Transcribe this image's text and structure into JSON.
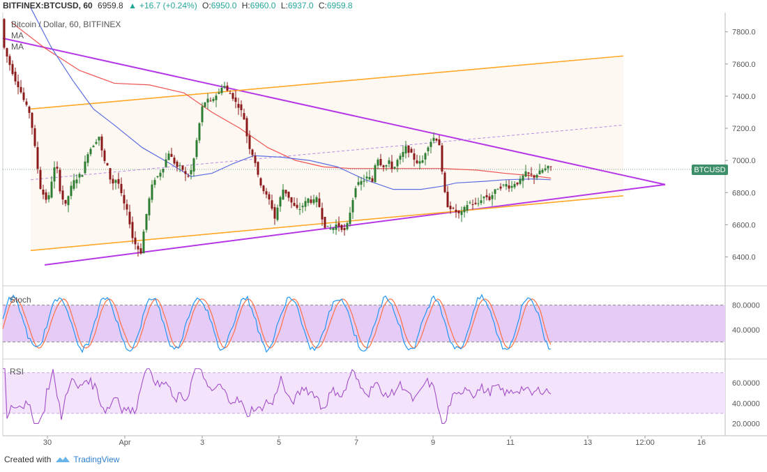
{
  "header": {
    "symbol": "BITFINEX:BTCUSD, 60",
    "last": "6959.8",
    "change": "+16.7 (+0.24%)",
    "open_label": "O:",
    "open": "6950.0",
    "high_label": "H:",
    "high": "6960.0",
    "low_label": "L:",
    "low": "6937.0",
    "close_label": "C:",
    "close": "6959.8"
  },
  "overlay": {
    "title": "Bitcoin / Dollar, 60, BITFINEX",
    "ma1": "MA",
    "ma2": "MA"
  },
  "price_tag": "BTCUSD",
  "footer": {
    "created_with": "Created with",
    "brand": "TradingView"
  },
  "colors": {
    "bull": "#2e7d32",
    "bear": "#8b1a1a",
    "purple_line": "#b537e6",
    "orange_line": "#ffa726",
    "ma_red": "#ef5350",
    "ma_blue": "#5b6ee1",
    "stoch_k": "#2196f3",
    "stoch_d": "#ff7043",
    "stoch_fill": "#e6cbf7",
    "rsi_fill": "#f3e3fb",
    "rsi_line": "#a24ec9",
    "tag_bg": "#3d8f6a"
  },
  "chart_data": [
    {
      "type": "candlestick",
      "title": "Bitcoin / Dollar, 60, BITFINEX",
      "y_ticks": [
        "7800.0",
        "7600.0",
        "7400.0",
        "7200.0",
        "7000.0",
        "6800.0",
        "6600.0",
        "6400.0"
      ],
      "x_ticks": [
        "30",
        "Apr",
        "3",
        "5",
        "7",
        "9",
        "11",
        "13",
        "12:00",
        "16"
      ],
      "ylim": [
        6220,
        7920
      ],
      "current_price": 6959.8,
      "price_path": [
        [
          0,
          7880
        ],
        [
          4,
          7700
        ],
        [
          10,
          7620
        ],
        [
          20,
          7500
        ],
        [
          26,
          7450
        ],
        [
          34,
          7350
        ],
        [
          40,
          7300
        ],
        [
          46,
          7160
        ],
        [
          50,
          7000
        ],
        [
          54,
          6900
        ],
        [
          58,
          6760
        ],
        [
          62,
          6820
        ],
        [
          66,
          6700
        ],
        [
          70,
          6850
        ],
        [
          74,
          6900
        ],
        [
          78,
          7000
        ],
        [
          84,
          6820
        ],
        [
          88,
          6760
        ],
        [
          92,
          6720
        ],
        [
          96,
          6780
        ],
        [
          102,
          6860
        ],
        [
          110,
          6900
        ],
        [
          116,
          6920
        ],
        [
          124,
          7050
        ],
        [
          132,
          7100
        ],
        [
          140,
          7150
        ],
        [
          146,
          7010
        ],
        [
          152,
          6960
        ],
        [
          158,
          6850
        ],
        [
          166,
          6890
        ],
        [
          174,
          6750
        ],
        [
          182,
          6660
        ],
        [
          188,
          6520
        ],
        [
          194,
          6460
        ],
        [
          200,
          6430
        ],
        [
          206,
          6620
        ],
        [
          212,
          6760
        ],
        [
          218,
          6880
        ],
        [
          224,
          6900
        ],
        [
          232,
          6960
        ],
        [
          240,
          7050
        ],
        [
          246,
          7000
        ],
        [
          252,
          6960
        ],
        [
          258,
          6960
        ],
        [
          264,
          6910
        ],
        [
          270,
          6900
        ],
        [
          276,
          7010
        ],
        [
          282,
          7180
        ],
        [
          288,
          7330
        ],
        [
          294,
          7380
        ],
        [
          300,
          7360
        ],
        [
          306,
          7400
        ],
        [
          312,
          7420
        ],
        [
          318,
          7480
        ],
        [
          324,
          7430
        ],
        [
          330,
          7410
        ],
        [
          336,
          7360
        ],
        [
          342,
          7330
        ],
        [
          348,
          7260
        ],
        [
          354,
          7100
        ],
        [
          360,
          7040
        ],
        [
          364,
          6990
        ],
        [
          368,
          6900
        ],
        [
          374,
          6830
        ],
        [
          380,
          6780
        ],
        [
          386,
          6740
        ],
        [
          392,
          6640
        ],
        [
          398,
          6740
        ],
        [
          404,
          6820
        ],
        [
          410,
          6790
        ],
        [
          418,
          6720
        ],
        [
          426,
          6690
        ],
        [
          432,
          6720
        ],
        [
          440,
          6760
        ],
        [
          446,
          6740
        ],
        [
          452,
          6760
        ],
        [
          458,
          6690
        ],
        [
          462,
          6600
        ],
        [
          468,
          6580
        ],
        [
          474,
          6570
        ],
        [
          480,
          6600
        ],
        [
          486,
          6590
        ],
        [
          492,
          6560
        ],
        [
          496,
          6600
        ],
        [
          502,
          6720
        ],
        [
          508,
          6840
        ],
        [
          514,
          6860
        ],
        [
          520,
          6880
        ],
        [
          526,
          6900
        ],
        [
          532,
          6870
        ],
        [
          538,
          7030
        ],
        [
          544,
          6980
        ],
        [
          550,
          6960
        ],
        [
          556,
          6990
        ],
        [
          562,
          6940
        ],
        [
          568,
          7000
        ],
        [
          574,
          7030
        ],
        [
          580,
          7080
        ],
        [
          586,
          7050
        ],
        [
          592,
          7010
        ],
        [
          598,
          6980
        ],
        [
          604,
          7000
        ],
        [
          610,
          7080
        ],
        [
          616,
          7120
        ],
        [
          622,
          7150
        ],
        [
          628,
          7100
        ],
        [
          634,
          6830
        ],
        [
          640,
          6720
        ],
        [
          646,
          6700
        ],
        [
          652,
          6680
        ],
        [
          658,
          6660
        ],
        [
          664,
          6700
        ],
        [
          670,
          6740
        ],
        [
          676,
          6730
        ],
        [
          682,
          6720
        ],
        [
          688,
          6760
        ],
        [
          694,
          6780
        ],
        [
          700,
          6760
        ],
        [
          706,
          6800
        ],
        [
          712,
          6830
        ],
        [
          718,
          6840
        ],
        [
          724,
          6850
        ],
        [
          730,
          6830
        ],
        [
          736,
          6860
        ],
        [
          742,
          6860
        ],
        [
          748,
          6900
        ],
        [
          752,
          6920
        ],
        [
          758,
          6910
        ],
        [
          764,
          6900
        ],
        [
          770,
          6920
        ],
        [
          776,
          6940
        ],
        [
          782,
          6950
        ],
        [
          786,
          6959.8
        ]
      ],
      "ma_red": [
        [
          12,
          7860
        ],
        [
          60,
          7700
        ],
        [
          110,
          7560
        ],
        [
          160,
          7480
        ],
        [
          210,
          7470
        ],
        [
          260,
          7420
        ],
        [
          300,
          7300
        ],
        [
          340,
          7200
        ],
        [
          380,
          7080
        ],
        [
          420,
          7000
        ],
        [
          460,
          6960
        ],
        [
          500,
          6950
        ],
        [
          540,
          6950
        ],
        [
          580,
          6950
        ],
        [
          630,
          6950
        ],
        [
          680,
          6940
        ],
        [
          720,
          6920
        ],
        [
          760,
          6905
        ],
        [
          786,
          6890
        ]
      ],
      "ma_blue": [
        [
          40,
          7950
        ],
        [
          70,
          7700
        ],
        [
          100,
          7500
        ],
        [
          130,
          7320
        ],
        [
          160,
          7220
        ],
        [
          200,
          7080
        ],
        [
          240,
          6980
        ],
        [
          270,
          6900
        ],
        [
          300,
          6920
        ],
        [
          330,
          6980
        ],
        [
          360,
          7030
        ],
        [
          400,
          7020
        ],
        [
          440,
          7000
        ],
        [
          480,
          6960
        ],
        [
          520,
          6880
        ],
        [
          560,
          6820
        ],
        [
          600,
          6820
        ],
        [
          630,
          6840
        ],
        [
          650,
          6860
        ],
        [
          690,
          6870
        ],
        [
          720,
          6880
        ],
        [
          760,
          6885
        ],
        [
          786,
          6880
        ]
      ],
      "trendlines": [
        {
          "name": "upper-triangle",
          "color": "purple",
          "from": [
            0,
            7760
          ],
          "to": [
            950,
            6850
          ]
        },
        {
          "name": "lower-triangle",
          "color": "purple",
          "from": [
            60,
            6350
          ],
          "to": [
            950,
            6850
          ]
        },
        {
          "name": "upper-channel",
          "color": "orange",
          "from": [
            40,
            7320
          ],
          "to": [
            890,
            7650
          ]
        },
        {
          "name": "lower-channel",
          "color": "orange",
          "from": [
            40,
            6440
          ],
          "to": [
            890,
            6780
          ]
        },
        {
          "name": "mid-channel",
          "color": "purple-dashed",
          "from": [
            40,
            6880
          ],
          "to": [
            890,
            7220
          ]
        }
      ]
    },
    {
      "type": "line",
      "title": "Stoch",
      "y_ticks": [
        "80.0000",
        "40.0000"
      ],
      "ylim": [
        0,
        100
      ],
      "bands": [
        80,
        20
      ]
    },
    {
      "type": "line",
      "title": "RSI",
      "y_ticks": [
        "60.0000",
        "40.0000",
        "20.0000"
      ],
      "ylim": [
        10,
        80
      ],
      "bands": [
        70,
        30
      ]
    }
  ]
}
